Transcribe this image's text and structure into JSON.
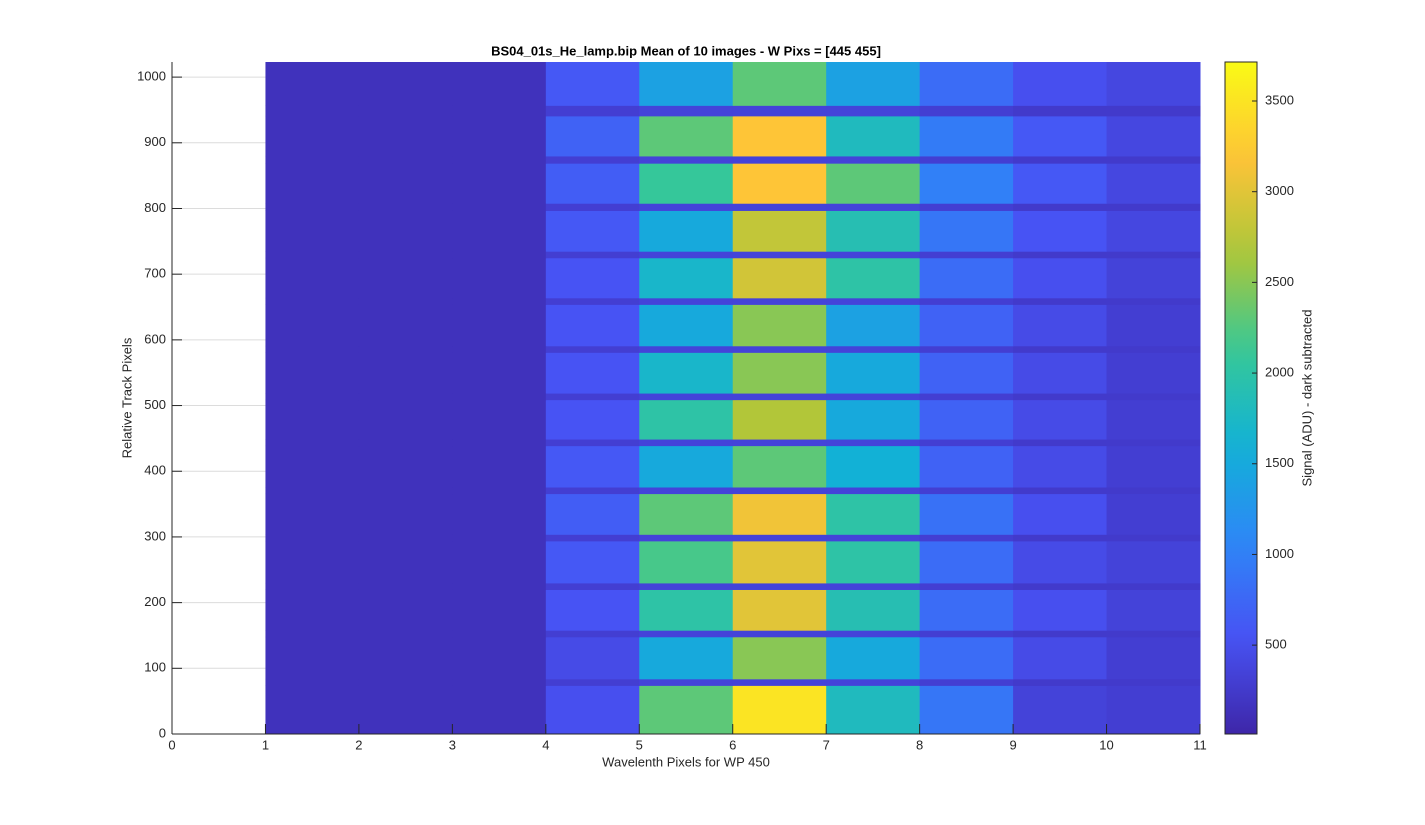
{
  "chart_data": {
    "type": "heatmap",
    "title": "BS04_01s_He_lamp.bip  Mean of 10 images - W Pixs = [445  455]",
    "x_label": "Wavelenth Pixels for WP 450",
    "y_label": "Relative Track Pixels",
    "colorbar_label": "Signal (ADU) - dark subtracted",
    "colormap": "parula",
    "grid": true,
    "xlim": [
      0,
      11
    ],
    "xticks": [
      0,
      1,
      2,
      3,
      4,
      5,
      6,
      7,
      8,
      9,
      10,
      11
    ],
    "ylim": [
      0,
      1023
    ],
    "yticks": [
      0,
      100,
      200,
      300,
      400,
      500,
      600,
      700,
      800,
      900,
      1000
    ],
    "clim": [
      10,
      3715
    ],
    "cticks": [
      500,
      1000,
      1500,
      2000,
      2500,
      3000,
      3500
    ],
    "x_edges": [
      1,
      2,
      3,
      4,
      5,
      6,
      7,
      8,
      9,
      10,
      11
    ],
    "y_edges": [
      0,
      74,
      84,
      148,
      158,
      220,
      230,
      294,
      304,
      366,
      376,
      439,
      449,
      509,
      519,
      581,
      591,
      654,
      664,
      725,
      735,
      797,
      808,
      869,
      880,
      941,
      957,
      1023
    ],
    "values": [
      [
        150,
        150,
        150,
        500,
        2300,
        3500,
        1800,
        900,
        350,
        300
      ],
      [
        150,
        150,
        150,
        300,
        350,
        350,
        350,
        300,
        250,
        250
      ],
      [
        150,
        150,
        150,
        450,
        1500,
        2500,
        1500,
        800,
        450,
        300
      ],
      [
        150,
        150,
        150,
        300,
        350,
        350,
        350,
        300,
        250,
        250
      ],
      [
        150,
        150,
        150,
        550,
        2000,
        3000,
        1900,
        800,
        500,
        350
      ],
      [
        150,
        150,
        150,
        300,
        350,
        350,
        350,
        300,
        250,
        250
      ],
      [
        150,
        150,
        150,
        600,
        2200,
        3000,
        2000,
        800,
        450,
        350
      ],
      [
        150,
        150,
        150,
        300,
        350,
        350,
        350,
        300,
        250,
        250
      ],
      [
        150,
        150,
        150,
        650,
        2300,
        3100,
        2000,
        850,
        500,
        300
      ],
      [
        150,
        150,
        150,
        300,
        350,
        350,
        350,
        300,
        250,
        250
      ],
      [
        150,
        150,
        150,
        600,
        1500,
        2300,
        1600,
        700,
        450,
        300
      ],
      [
        150,
        150,
        150,
        300,
        350,
        350,
        350,
        300,
        250,
        250
      ],
      [
        150,
        150,
        150,
        550,
        2000,
        2700,
        1500,
        700,
        450,
        300
      ],
      [
        150,
        150,
        150,
        300,
        350,
        350,
        350,
        300,
        250,
        250
      ],
      [
        150,
        150,
        150,
        550,
        1700,
        2500,
        1500,
        700,
        450,
        300
      ],
      [
        150,
        150,
        150,
        300,
        350,
        350,
        350,
        300,
        250,
        250
      ],
      [
        150,
        150,
        150,
        550,
        1500,
        2500,
        1400,
        700,
        450,
        300
      ],
      [
        150,
        150,
        150,
        300,
        350,
        350,
        350,
        300,
        250,
        250
      ],
      [
        150,
        150,
        150,
        550,
        1700,
        2900,
        2000,
        800,
        500,
        350
      ],
      [
        150,
        150,
        150,
        300,
        350,
        350,
        350,
        300,
        250,
        250
      ],
      [
        150,
        150,
        150,
        600,
        1500,
        2800,
        1900,
        900,
        550,
        400
      ],
      [
        150,
        150,
        150,
        300,
        350,
        350,
        350,
        300,
        250,
        250
      ],
      [
        150,
        150,
        150,
        650,
        2100,
        3200,
        2300,
        1000,
        600,
        400
      ],
      [
        150,
        150,
        150,
        300,
        350,
        350,
        350,
        300,
        250,
        250
      ],
      [
        150,
        150,
        150,
        700,
        2300,
        3200,
        1800,
        950,
        600,
        400
      ],
      [
        150,
        150,
        150,
        300,
        350,
        350,
        350,
        300,
        250,
        250
      ],
      [
        150,
        150,
        150,
        600,
        1400,
        2300,
        1400,
        800,
        500,
        400
      ]
    ]
  }
}
